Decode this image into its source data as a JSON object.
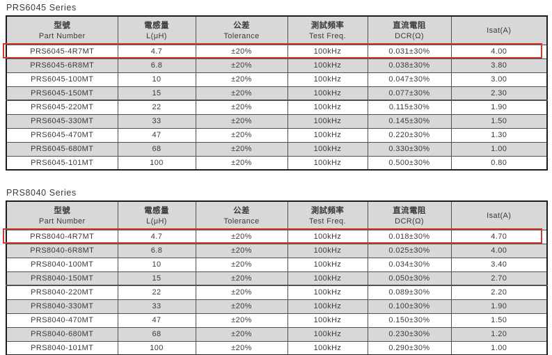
{
  "page": {
    "background": "#ffffff",
    "text_color": "#3a3a3a",
    "header_bg": "#d8d8d8",
    "alt_row_bg": "#d8d8d8",
    "highlight_color": "#d0392e"
  },
  "tables": [
    {
      "title": "PRS6045 Series",
      "columns": [
        {
          "zh": "型號",
          "en": "Part Number"
        },
        {
          "zh": "電感量",
          "en": "L(μH)"
        },
        {
          "zh": "公差",
          "en": "Tolerance"
        },
        {
          "zh": "測試頻率",
          "en": "Test Freq."
        },
        {
          "zh": "直流電阻",
          "en": "DCR(Ω)"
        },
        {
          "zh": "",
          "en": "Isat(A)"
        }
      ],
      "rows": [
        [
          "PRS6045-4R7MT",
          "4.7",
          "±20%",
          "100kHz",
          "0.031±30%",
          "4.00"
        ],
        [
          "PRS6045-6R8MT",
          "6.8",
          "±20%",
          "100kHz",
          "0.038±30%",
          "3.80"
        ],
        [
          "PRS6045-100MT",
          "10",
          "±20%",
          "100kHz",
          "0.047±30%",
          "3.00"
        ],
        [
          "PRS6045-150MT",
          "15",
          "±20%",
          "100kHz",
          "0.077±30%",
          "2.30"
        ],
        [
          "PRS6045-220MT",
          "22",
          "±20%",
          "100kHz",
          "0.115±30%",
          "1.90"
        ],
        [
          "PRS6045-330MT",
          "33",
          "±20%",
          "100kHz",
          "0.145±30%",
          "1.50"
        ],
        [
          "PRS6045-470MT",
          "47",
          "±20%",
          "100kHz",
          "0.220±30%",
          "1.30"
        ],
        [
          "PRS6045-680MT",
          "68",
          "±20%",
          "100kHz",
          "0.330±30%",
          "1.00"
        ],
        [
          "PRS6045-101MT",
          "100",
          "±20%",
          "100kHz",
          "0.500±30%",
          "0.80"
        ]
      ],
      "highlighted_row_index": 0
    },
    {
      "title": "PRS8040 Series",
      "columns": [
        {
          "zh": "型號",
          "en": "Part Number"
        },
        {
          "zh": "電感量",
          "en": "L(μH)"
        },
        {
          "zh": "公差",
          "en": "Tolerance"
        },
        {
          "zh": "測試頻率",
          "en": "Test Freq."
        },
        {
          "zh": "直流電阻",
          "en": "DCR(Ω)"
        },
        {
          "zh": "",
          "en": "Isat(A)"
        }
      ],
      "rows": [
        [
          "PRS8040-4R7MT",
          "4.7",
          "±20%",
          "100kHz",
          "0.018±30%",
          "4.70"
        ],
        [
          "PRS8040-6R8MT",
          "6.8",
          "±20%",
          "100kHz",
          "0.025±30%",
          "4.00"
        ],
        [
          "PRS8040-100MT",
          "10",
          "±20%",
          "100kHz",
          "0.034±30%",
          "3.40"
        ],
        [
          "PRS8040-150MT",
          "15",
          "±20%",
          "100kHz",
          "0.050±30%",
          "2.70"
        ],
        [
          "PRS8040-220MT",
          "22",
          "±20%",
          "100kHz",
          "0.089±30%",
          "2.20"
        ],
        [
          "PRS8040-330MT",
          "33",
          "±20%",
          "100kHz",
          "0.100±30%",
          "1.90"
        ],
        [
          "PRS8040-470MT",
          "47",
          "±20%",
          "100kHz",
          "0.150±30%",
          "1.50"
        ],
        [
          "PRS8040-680MT",
          "68",
          "±20%",
          "100kHz",
          "0.230±30%",
          "1.20"
        ],
        [
          "PRS8040-101MT",
          "100",
          "±20%",
          "100kHz",
          "0.290±30%",
          "1.00"
        ]
      ],
      "highlighted_row_index": 0
    }
  ]
}
